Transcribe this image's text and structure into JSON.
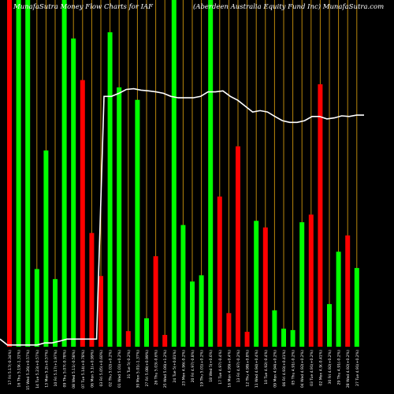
{
  "chart_data": {
    "type": "bar",
    "title_left": "MunafaSutra  Money Flow  Charts for IAF",
    "title_right": "(Aberdeen  Australia  Equity Fund Inc) MunafaSutra.com",
    "colors": {
      "up": "#00ff00",
      "down": "#ff0000",
      "grid": "#b8860b",
      "line": "#ffffff",
      "background": "#000000"
    },
    "bars": [
      {
        "color": "down",
        "value": 100
      },
      {
        "color": "up",
        "value": 100
      },
      {
        "color": "up",
        "value": 100
      },
      {
        "color": "up",
        "value": 22.4
      },
      {
        "color": "up",
        "value": 56.6
      },
      {
        "color": "up",
        "value": 19.5
      },
      {
        "color": "up",
        "value": 100
      },
      {
        "color": "up",
        "value": 88.9
      },
      {
        "color": "down",
        "value": 76.9
      },
      {
        "color": "down",
        "value": 32.8
      },
      {
        "color": "down",
        "value": 20.4
      },
      {
        "color": "up",
        "value": 90.7
      },
      {
        "color": "up",
        "value": 74.8
      },
      {
        "color": "down",
        "value": 4.5
      },
      {
        "color": "up",
        "value": 71.2
      },
      {
        "color": "up",
        "value": 8.2
      },
      {
        "color": "down",
        "value": 26.1
      },
      {
        "color": "down",
        "value": 3.4
      },
      {
        "color": "up",
        "value": 100
      },
      {
        "color": "up",
        "value": 35.1
      },
      {
        "color": "up",
        "value": 18.8
      },
      {
        "color": "up",
        "value": 20.6
      },
      {
        "color": "up",
        "value": 100
      },
      {
        "color": "down",
        "value": 43.3
      },
      {
        "color": "down",
        "value": 9.7
      },
      {
        "color": "down",
        "value": 57.8
      },
      {
        "color": "down",
        "value": 4.3
      },
      {
        "color": "up",
        "value": 36.3
      },
      {
        "color": "down",
        "value": 34.4
      },
      {
        "color": "up",
        "value": 10.5
      },
      {
        "color": "up",
        "value": 5.2
      },
      {
        "color": "up",
        "value": 4.8
      },
      {
        "color": "up",
        "value": 35.9
      },
      {
        "color": "down",
        "value": 38.1
      },
      {
        "color": "down",
        "value": 75.7
      },
      {
        "color": "up",
        "value": 12.3
      },
      {
        "color": "up",
        "value": 27.4
      },
      {
        "color": "down",
        "value": 32.1
      },
      {
        "color": "up",
        "value": 22.7
      }
    ],
    "line": [
      2.2,
      0.5,
      0.5,
      0.5,
      0.5,
      0.5,
      1.1,
      1.1,
      1.6,
      2.2,
      2.2,
      2.2,
      2.2,
      2.2,
      72.2,
      72.2,
      73.1,
      74.2,
      74.4,
      74.0,
      73.8,
      73.5,
      73.1,
      72.2,
      71.8,
      71.8,
      71.8,
      72.2,
      73.5,
      73.5,
      73.8,
      72.2,
      71.1,
      69.4,
      67.7,
      68.1,
      67.7,
      66.4,
      65.2,
      64.7,
      64.7,
      65.2,
      66.4,
      66.4,
      65.7,
      66.0,
      66.6,
      66.4,
      66.8,
      66.8
    ],
    "dates": [
      "17 Fri 5.17(-0.34%)",
      "16 Thu 5.19(-1.31%)",
      "15 Wed 5.26(+0.57%)",
      "14 Tue 5.23(+0.57%)",
      "13 Mon 5.2(+0.57%)",
      "10 Fri 5.17(+1.97%)",
      "09 Thu 5.07(-0.78%)",
      "08 Wed 5.11(-0.58%)",
      "07 Tue 5.14(+0.78%)",
      "06 Mon 5.1(+0.99%)",
      "03 Fri 5.05(+0.60%)",
      "02 Thu 5.02(+0.2%)",
      "01 Wed 5.01(+0.2%)",
      "31 Tue 5(-0.2%)",
      "30 Mon 5.01(-1.37%)",
      "27 Fri 5.08(+0.99%)",
      "26 Thu 5.03(-0.6%)",
      "25 Wed 5.06(+1.2%)",
      "24 Tue 5(+0.81%)",
      "23 Mon 4.96(-0.2%)",
      "20 Fri 4.97(-0.8%)",
      "19 Thu 5.01(+0.2%)",
      "18 Wed 5(+0.6%)",
      "17 Tue 4.97(-0.4%)",
      "16 Mon 4.99(+0.4%)",
      "13 Fri 4.97(-0.2%)",
      "12 Thu 4.98(+0.8%)",
      "11 Wed 4.94(+0.4%)",
      "10 Tue 4.92(-0.4%)",
      "09 Mon 4.94(+0.2%)",
      "06 Fri 4.93(+0.41%)",
      "05 Thu 4.91(-0.2%)",
      "04 Wed 4.92(+0.2%)",
      "03 Tue 4.91(+0.2%)",
      "02 Mon 4.9(-0.41%)",
      "30 Fri 4.92(+0.2%)",
      "29 Thu 4.91(-0.2%)",
      "28 Wed 4.92(+0.2%)",
      "27 Tue 4.91(+0.2%)"
    ]
  }
}
